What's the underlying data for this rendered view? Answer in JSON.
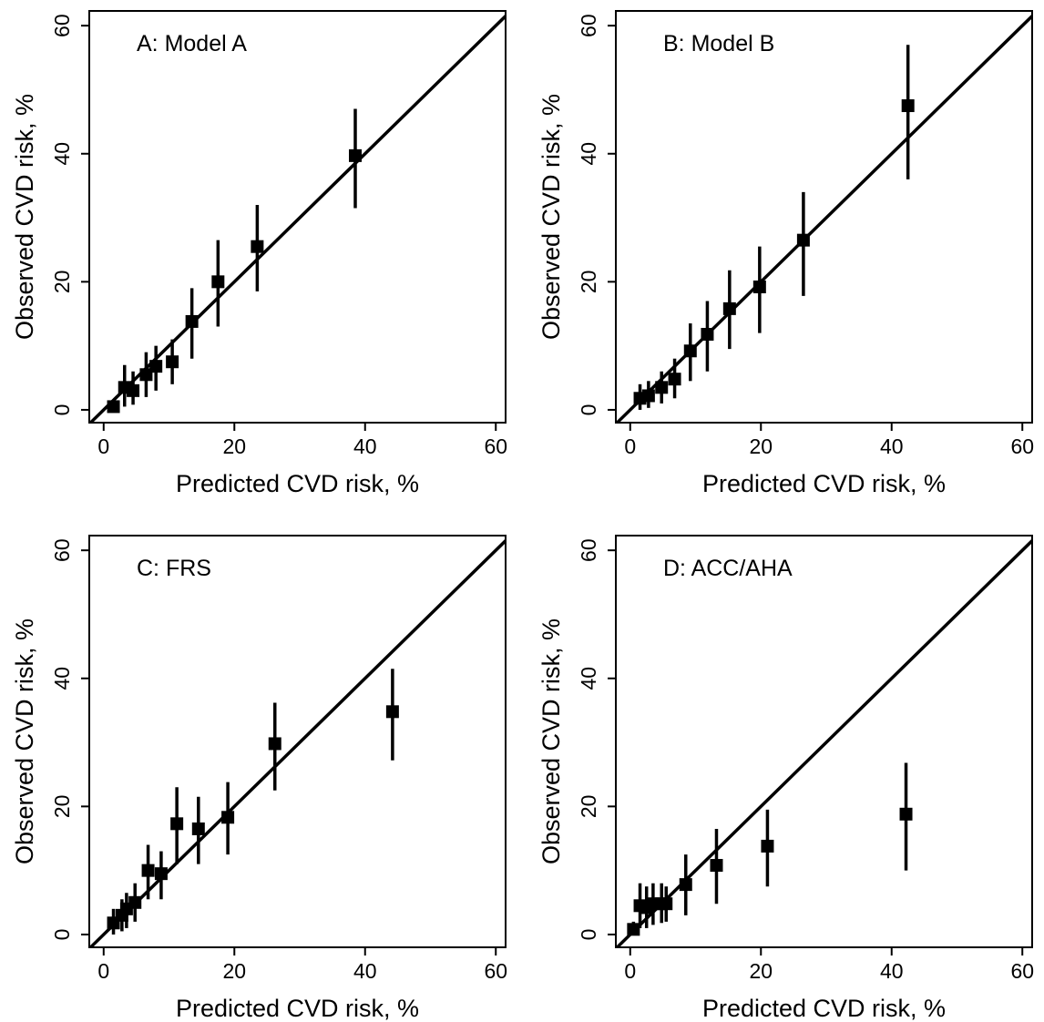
{
  "colors": {
    "ink": "#000000",
    "background": "#ffffff"
  },
  "chart_data": [
    {
      "type": "scatter",
      "title": "A: Model A",
      "xlabel": "Predicted CVD risk, %",
      "ylabel": "Observed CVD risk, %",
      "xlim": [
        0,
        60
      ],
      "ylim": [
        0,
        60
      ],
      "xticks": [
        0,
        20,
        40,
        60
      ],
      "yticks": [
        0,
        20,
        40,
        60
      ],
      "reference_line": "y = x",
      "grid": false,
      "points": [
        {
          "x": 1.5,
          "y": 0.5,
          "ci": [
            0,
            1.5
          ]
        },
        {
          "x": 3.2,
          "y": 3.5,
          "ci": [
            0.5,
            7
          ]
        },
        {
          "x": 4.5,
          "y": 3,
          "ci": [
            0.8,
            6
          ]
        },
        {
          "x": 6.5,
          "y": 5.5,
          "ci": [
            2,
            9
          ]
        },
        {
          "x": 8,
          "y": 6.8,
          "ci": [
            3,
            10
          ]
        },
        {
          "x": 10.5,
          "y": 7.5,
          "ci": [
            4,
            11
          ]
        },
        {
          "x": 13.5,
          "y": 13.8,
          "ci": [
            8,
            19
          ]
        },
        {
          "x": 17.5,
          "y": 20,
          "ci": [
            13,
            26.5
          ]
        },
        {
          "x": 23.5,
          "y": 25.5,
          "ci": [
            18.5,
            32
          ]
        },
        {
          "x": 38.5,
          "y": 39.7,
          "ci": [
            31.5,
            47
          ]
        }
      ]
    },
    {
      "type": "scatter",
      "title": "B: Model B",
      "xlabel": "Predicted CVD risk, %",
      "ylabel": "Observed CVD risk, %",
      "xlim": [
        0,
        60
      ],
      "ylim": [
        0,
        60
      ],
      "xticks": [
        0,
        20,
        40,
        60
      ],
      "yticks": [
        0,
        20,
        40,
        60
      ],
      "reference_line": "y = x",
      "grid": false,
      "points": [
        {
          "x": 1.5,
          "y": 1.8,
          "ci": [
            0,
            4
          ]
        },
        {
          "x": 2.8,
          "y": 2.2,
          "ci": [
            0.3,
            4.5
          ]
        },
        {
          "x": 4.8,
          "y": 3.5,
          "ci": [
            1,
            6
          ]
        },
        {
          "x": 6.8,
          "y": 4.8,
          "ci": [
            1.8,
            8
          ]
        },
        {
          "x": 9.2,
          "y": 9.2,
          "ci": [
            4.5,
            13.5
          ]
        },
        {
          "x": 11.8,
          "y": 11.8,
          "ci": [
            6,
            17
          ]
        },
        {
          "x": 15.2,
          "y": 15.8,
          "ci": [
            9.5,
            21.8
          ]
        },
        {
          "x": 19.8,
          "y": 19.2,
          "ci": [
            12,
            25.5
          ]
        },
        {
          "x": 26.5,
          "y": 26.5,
          "ci": [
            17.8,
            34
          ]
        },
        {
          "x": 42.5,
          "y": 47.5,
          "ci": [
            36,
            57
          ]
        }
      ]
    },
    {
      "type": "scatter",
      "title": "C: FRS",
      "xlabel": "Predicted CVD risk, %",
      "ylabel": "Observed CVD risk, %",
      "xlim": [
        0,
        60
      ],
      "ylim": [
        0,
        60
      ],
      "xticks": [
        0,
        20,
        40,
        60
      ],
      "yticks": [
        0,
        20,
        40,
        60
      ],
      "reference_line": "y = x",
      "grid": false,
      "points": [
        {
          "x": 1.5,
          "y": 1.8,
          "ci": [
            0,
            4
          ]
        },
        {
          "x": 2.8,
          "y": 3,
          "ci": [
            0.5,
            5.5
          ]
        },
        {
          "x": 3.5,
          "y": 4,
          "ci": [
            1,
            6.5
          ]
        },
        {
          "x": 4.8,
          "y": 5,
          "ci": [
            2,
            8
          ]
        },
        {
          "x": 6.8,
          "y": 10,
          "ci": [
            5.5,
            14
          ]
        },
        {
          "x": 8.8,
          "y": 9.5,
          "ci": [
            5.5,
            13
          ]
        },
        {
          "x": 11.2,
          "y": 17.3,
          "ci": [
            11,
            23
          ]
        },
        {
          "x": 14.5,
          "y": 16.5,
          "ci": [
            11,
            21.5
          ]
        },
        {
          "x": 19,
          "y": 18.3,
          "ci": [
            12.5,
            23.8
          ]
        },
        {
          "x": 26.2,
          "y": 29.8,
          "ci": [
            22.5,
            36.2
          ]
        },
        {
          "x": 44.2,
          "y": 34.8,
          "ci": [
            27.2,
            41.5
          ]
        }
      ]
    },
    {
      "type": "scatter",
      "title": "D: ACC/AHA",
      "xlabel": "Predicted CVD risk, %",
      "ylabel": "Observed CVD risk, %",
      "xlim": [
        0,
        60
      ],
      "ylim": [
        0,
        60
      ],
      "xticks": [
        0,
        20,
        40,
        60
      ],
      "yticks": [
        0,
        20,
        40,
        60
      ],
      "reference_line": "y = x",
      "grid": false,
      "points": [
        {
          "x": 0.5,
          "y": 0.8,
          "ci": [
            0,
            2
          ]
        },
        {
          "x": 1.5,
          "y": 4.5,
          "ci": [
            1,
            8
          ]
        },
        {
          "x": 2.5,
          "y": 4.2,
          "ci": [
            1,
            7.5
          ]
        },
        {
          "x": 3.5,
          "y": 4.8,
          "ci": [
            1.5,
            8
          ]
        },
        {
          "x": 4.8,
          "y": 4.8,
          "ci": [
            1.8,
            8
          ]
        },
        {
          "x": 5.5,
          "y": 4.8,
          "ci": [
            2,
            7.5
          ]
        },
        {
          "x": 8.5,
          "y": 7.8,
          "ci": [
            3,
            12.5
          ]
        },
        {
          "x": 13.2,
          "y": 10.8,
          "ci": [
            4.8,
            16.5
          ]
        },
        {
          "x": 21,
          "y": 13.8,
          "ci": [
            7.5,
            19.5
          ]
        },
        {
          "x": 42.2,
          "y": 18.8,
          "ci": [
            10,
            26.8
          ]
        }
      ]
    }
  ]
}
